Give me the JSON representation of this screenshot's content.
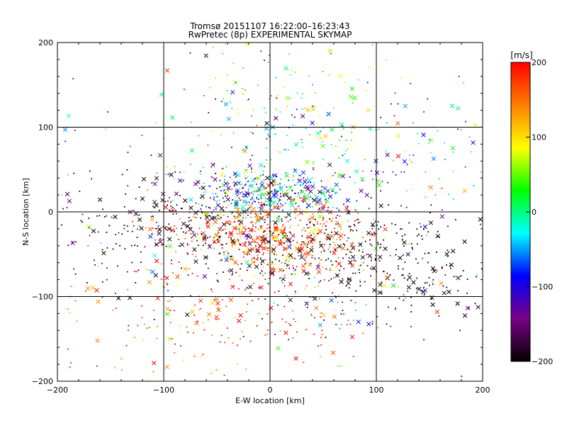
{
  "chart_data": {
    "type": "scatter",
    "title": "Tromsø 20151107 16:22:00–16:23:43",
    "subtitle": "RwPretec (8p) EXPERIMENTAL SKYMAP",
    "xlabel": "E-W location [km]",
    "ylabel": "N-S location [km]",
    "xlim": [
      -200,
      200
    ],
    "ylim": [
      -200,
      200
    ],
    "xticks": [
      -200,
      -100,
      0,
      100,
      200
    ],
    "yticks": [
      -200,
      -100,
      0,
      100,
      200
    ],
    "x_tick_labels": [
      "−200",
      "−100",
      "0",
      "100",
      "200"
    ],
    "y_tick_labels": [
      "−200",
      "−100",
      "0",
      "100",
      "200"
    ],
    "grid": true,
    "markers": [
      "dot",
      "cross"
    ],
    "colorbar": {
      "label": "[m/s]",
      "range": [
        -200,
        200
      ],
      "ticks": [
        200,
        100,
        0,
        -100,
        -200
      ],
      "tick_labels": [
        "200",
        "100",
        "0",
        "−100",
        "−200"
      ],
      "colormap": [
        "#000000",
        "#7a0087",
        "#0000ff",
        "#00ffff",
        "#00ff00",
        "#ffff00",
        "#ff7f00",
        "#ff0000"
      ]
    },
    "clusters": [
      {
        "cx": 0,
        "cy": 20,
        "sx": 35,
        "sy": 14,
        "n": 360,
        "v": -60,
        "dv": 70
      },
      {
        "cx": 0,
        "cy": -28,
        "sx": 45,
        "sy": 20,
        "n": 420,
        "v": 160,
        "dv": 45
      },
      {
        "cx": 10,
        "cy": 110,
        "sx": 45,
        "sy": 40,
        "n": 150,
        "v": 30,
        "dv": 80
      },
      {
        "cx": 60,
        "cy": -40,
        "sx": 65,
        "sy": 25,
        "n": 220,
        "v": -195,
        "dv": 8
      },
      {
        "cx": -130,
        "cy": -15,
        "sx": 50,
        "sy": 30,
        "n": 130,
        "v": -190,
        "dv": 30
      },
      {
        "cx": -50,
        "cy": -20,
        "sx": 50,
        "sy": 40,
        "n": 170,
        "v": -185,
        "dv": 30
      },
      {
        "cx": -60,
        "cy": -120,
        "sx": 80,
        "sy": 40,
        "n": 180,
        "v": 175,
        "dv": 40
      },
      {
        "cx": 140,
        "cy": 60,
        "sx": 45,
        "sy": 40,
        "n": 90,
        "v": -20,
        "dv": 90
      },
      {
        "cx": 130,
        "cy": -75,
        "sx": 45,
        "sy": 25,
        "n": 110,
        "v": -195,
        "dv": 10
      },
      {
        "cx": 0,
        "cy": 0,
        "sx": 110,
        "sy": 90,
        "n": 280,
        "v": 0,
        "dv": 200
      },
      {
        "cx": 30,
        "cy": -100,
        "sx": 50,
        "sy": 40,
        "n": 120,
        "v": 40,
        "dv": 150
      }
    ]
  }
}
